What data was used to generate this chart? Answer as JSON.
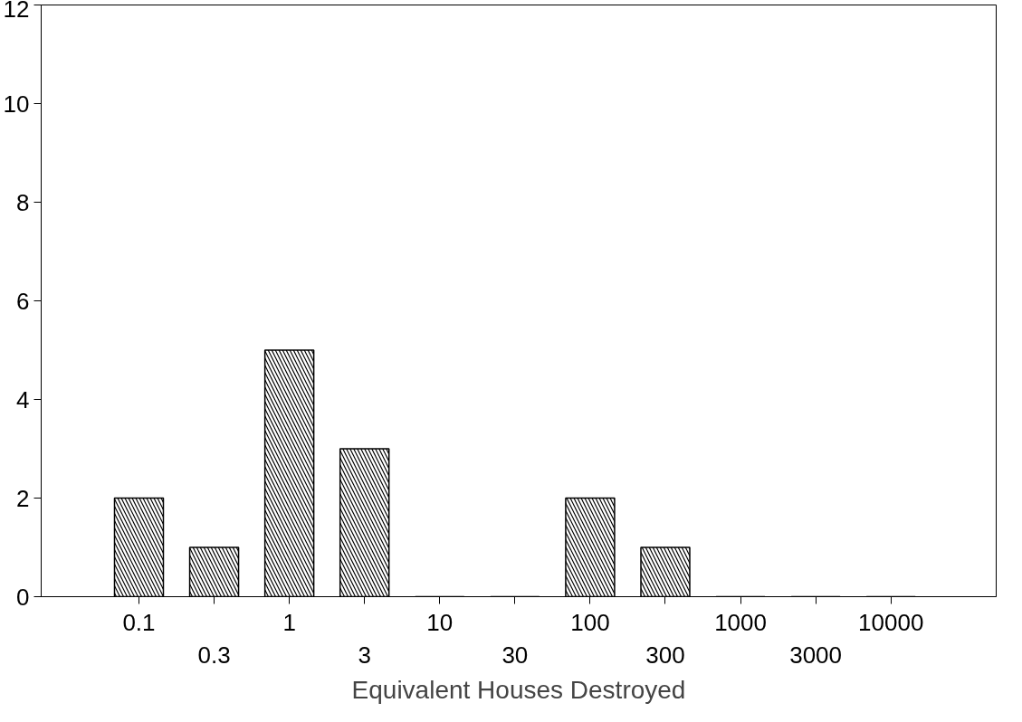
{
  "chart_data": {
    "type": "bar",
    "xlabel": "Equivalent Houses Destroyed",
    "categories": [
      "0.1",
      "0.3",
      "1",
      "3",
      "10",
      "30",
      "100",
      "300",
      "1000",
      "3000",
      "10000"
    ],
    "values": [
      2,
      1,
      5,
      3,
      0,
      0,
      2,
      1,
      0,
      0,
      0
    ],
    "color": "#000000",
    "ylim": [
      0,
      12
    ],
    "yticks": [
      0,
      2,
      4,
      6,
      8,
      10,
      12
    ],
    "grid": false
  }
}
